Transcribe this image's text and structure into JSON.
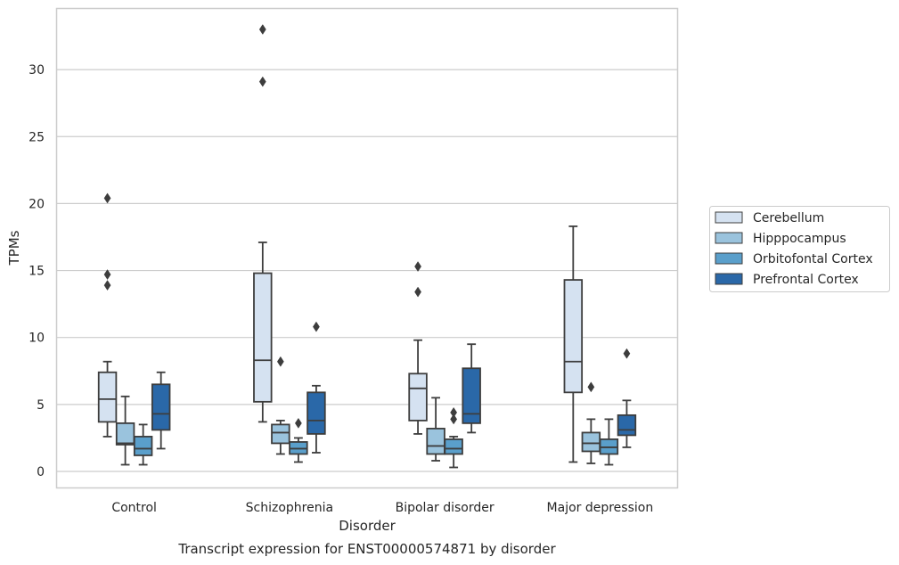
{
  "caption": "Transcript expression for ENST00000574871 by disorder",
  "chart_data": {
    "type": "box",
    "xlabel": "Disorder",
    "ylabel": "TPMs",
    "ylim": [
      -1.2,
      34.6
    ],
    "yticks": [
      0,
      5,
      10,
      15,
      20,
      25,
      30
    ],
    "grid": "horizontal",
    "legend_position": "right",
    "categories": [
      "Control",
      "Schizophrenia",
      "Bipolar disorder",
      "Major depression"
    ],
    "series": [
      {
        "name": "Cerebellum",
        "color": "#d5e2f1",
        "boxes": [
          {
            "whisker_low": 2.6,
            "q1": 3.7,
            "median": 5.4,
            "q3": 7.4,
            "whisker_high": 8.2,
            "outliers": [
              20.4,
              14.7,
              13.9
            ]
          },
          {
            "whisker_low": 3.7,
            "q1": 5.2,
            "median": 8.3,
            "q3": 14.8,
            "whisker_high": 17.1,
            "outliers": [
              33.0,
              29.1
            ]
          },
          {
            "whisker_low": 2.8,
            "q1": 3.8,
            "median": 6.2,
            "q3": 7.3,
            "whisker_high": 9.8,
            "outliers": [
              15.3,
              13.4
            ]
          },
          {
            "whisker_low": 0.7,
            "q1": 5.9,
            "median": 8.2,
            "q3": 14.3,
            "whisker_high": 18.3,
            "outliers": []
          }
        ]
      },
      {
        "name": "Hipppocampus",
        "color": "#9ac3dd",
        "boxes": [
          {
            "whisker_low": 0.5,
            "q1": 2.0,
            "median": 2.1,
            "q3": 3.6,
            "whisker_high": 5.6,
            "outliers": []
          },
          {
            "whisker_low": 1.3,
            "q1": 2.1,
            "median": 2.9,
            "q3": 3.5,
            "whisker_high": 3.8,
            "outliers": [
              8.2
            ]
          },
          {
            "whisker_low": 0.8,
            "q1": 1.3,
            "median": 1.9,
            "q3": 3.2,
            "whisker_high": 5.5,
            "outliers": []
          },
          {
            "whisker_low": 0.6,
            "q1": 1.5,
            "median": 2.1,
            "q3": 2.9,
            "whisker_high": 3.9,
            "outliers": [
              6.3
            ]
          }
        ]
      },
      {
        "name": "Orbitofontal Cortex",
        "color": "#5a9fcb",
        "boxes": [
          {
            "whisker_low": 0.5,
            "q1": 1.2,
            "median": 1.7,
            "q3": 2.6,
            "whisker_high": 3.5,
            "outliers": []
          },
          {
            "whisker_low": 0.7,
            "q1": 1.3,
            "median": 1.7,
            "q3": 2.2,
            "whisker_high": 2.5,
            "outliers": [
              3.6
            ]
          },
          {
            "whisker_low": 0.3,
            "q1": 1.3,
            "median": 1.7,
            "q3": 2.4,
            "whisker_high": 2.6,
            "outliers": [
              4.4,
              3.9
            ]
          },
          {
            "whisker_low": 0.5,
            "q1": 1.3,
            "median": 1.8,
            "q3": 2.4,
            "whisker_high": 3.9,
            "outliers": []
          }
        ]
      },
      {
        "name": "Prefrontal Cortex",
        "color": "#2a68a8",
        "boxes": [
          {
            "whisker_low": 1.7,
            "q1": 3.1,
            "median": 4.3,
            "q3": 6.5,
            "whisker_high": 7.4,
            "outliers": []
          },
          {
            "whisker_low": 1.4,
            "q1": 2.8,
            "median": 3.8,
            "q3": 5.9,
            "whisker_high": 6.4,
            "outliers": [
              10.8
            ]
          },
          {
            "whisker_low": 2.9,
            "q1": 3.6,
            "median": 4.3,
            "q3": 7.7,
            "whisker_high": 9.5,
            "outliers": []
          },
          {
            "whisker_low": 1.8,
            "q1": 2.7,
            "median": 3.1,
            "q3": 4.2,
            "whisker_high": 5.3,
            "outliers": [
              8.8
            ]
          }
        ]
      }
    ]
  }
}
